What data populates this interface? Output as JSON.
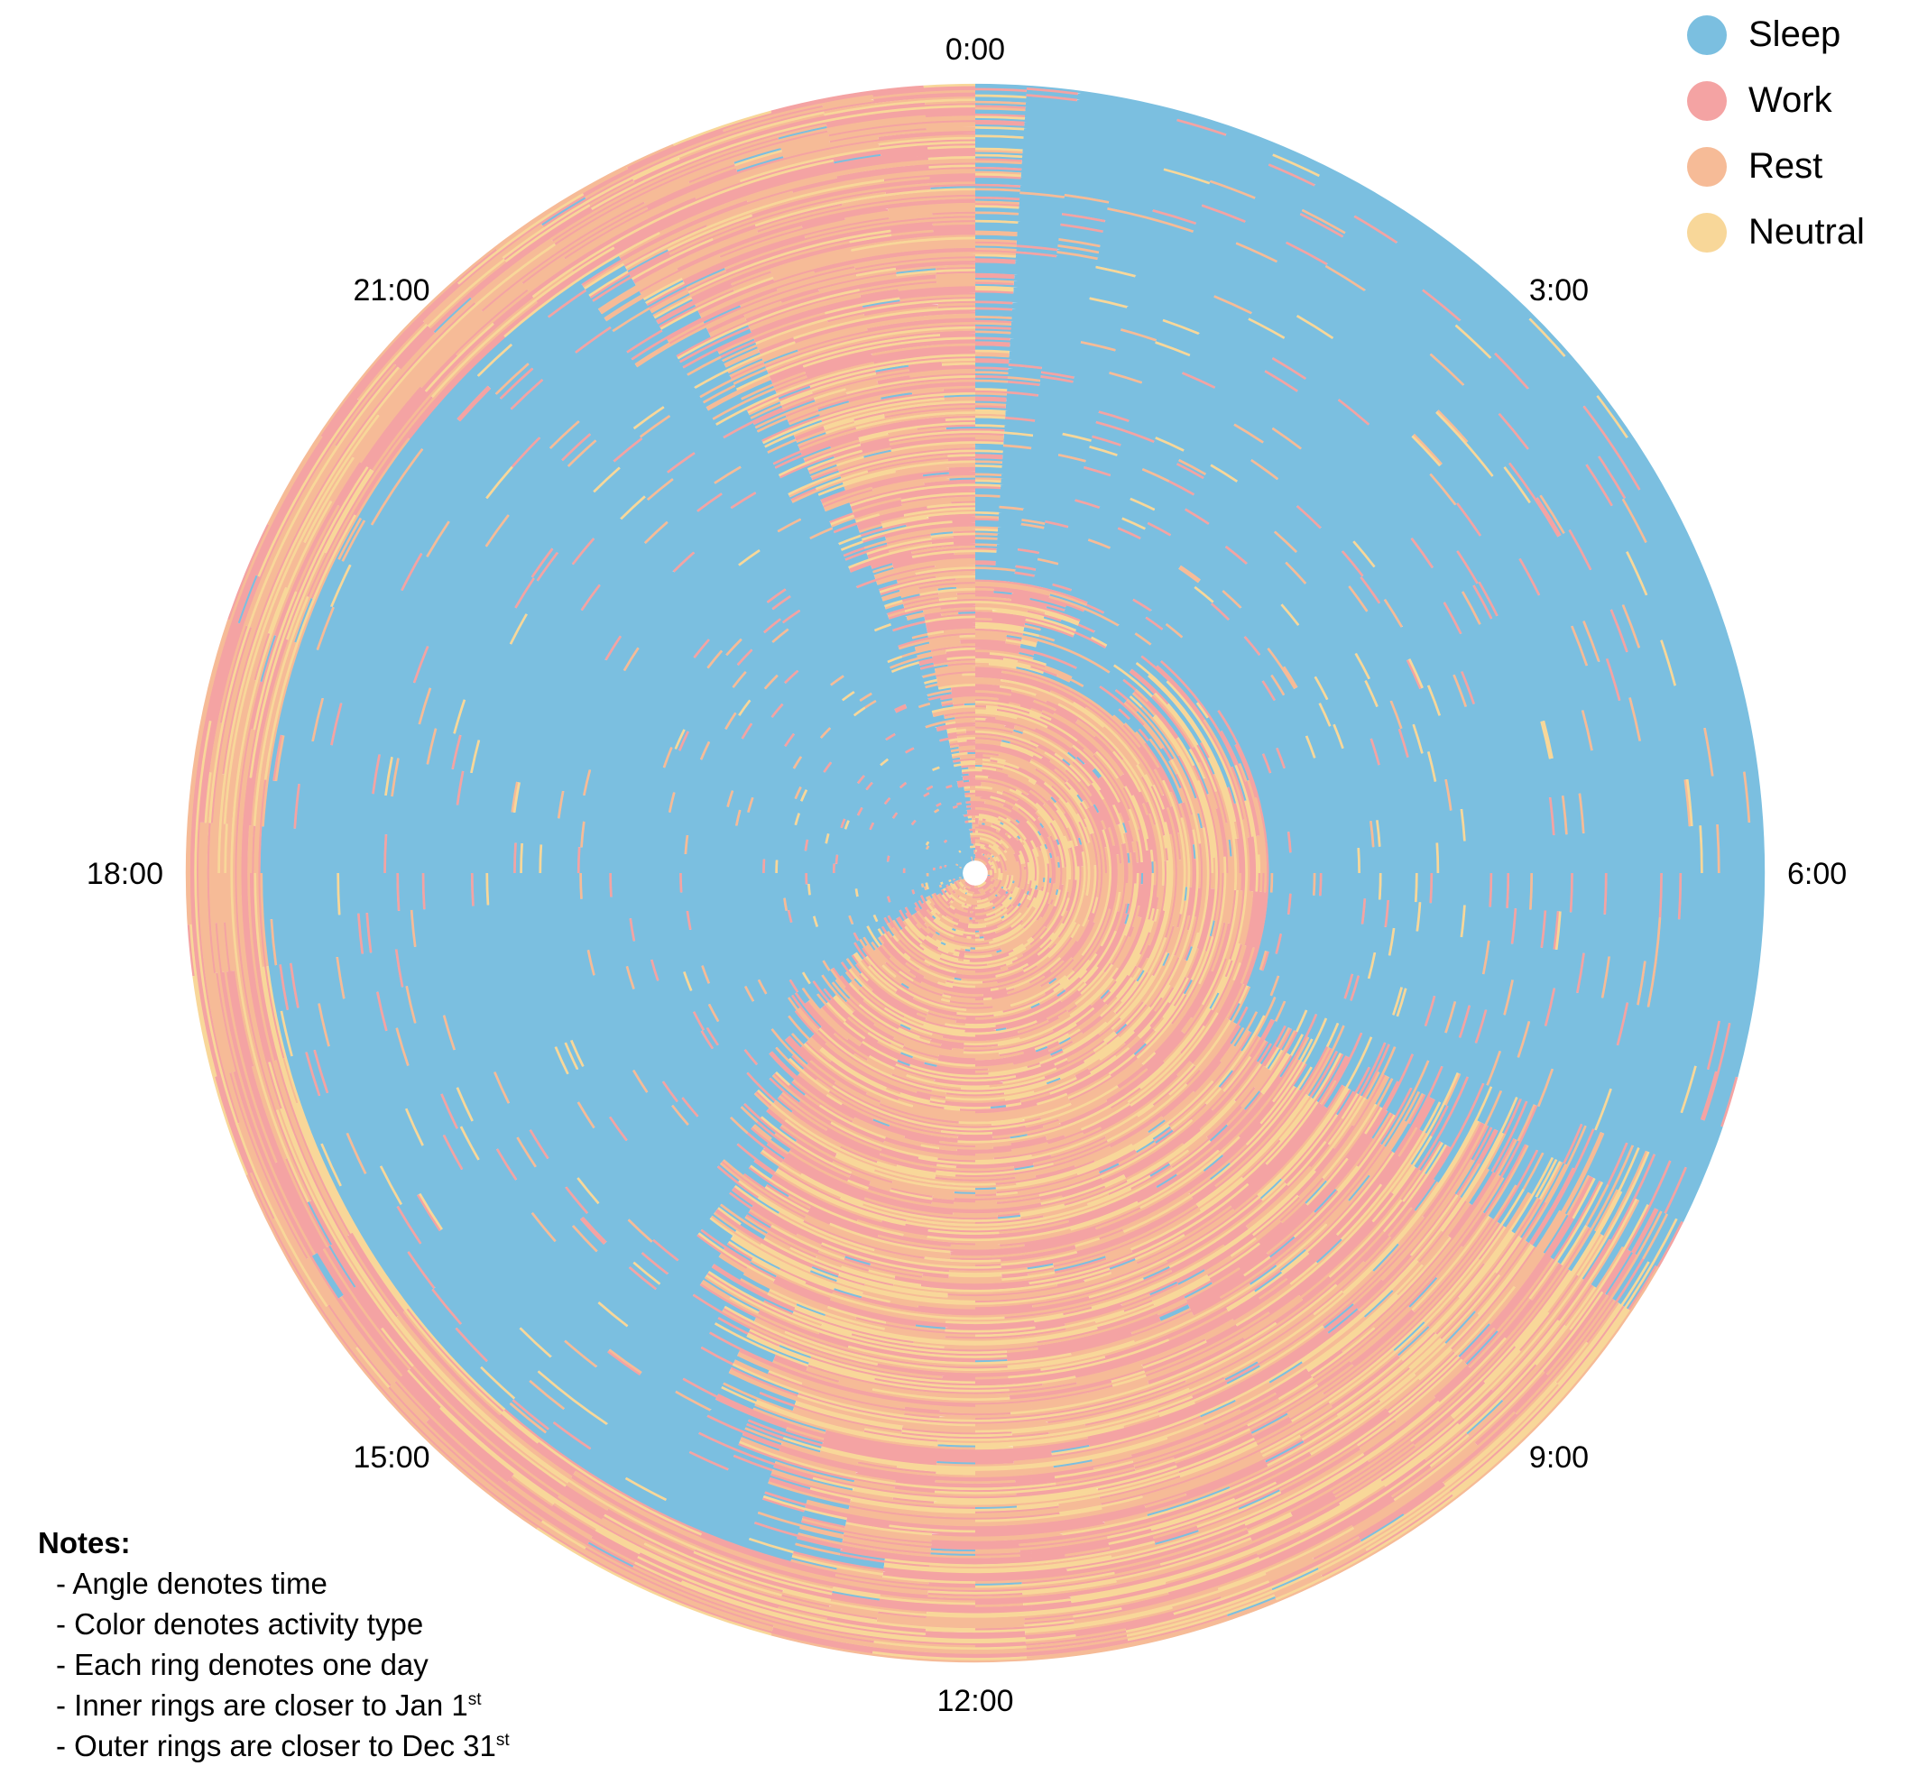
{
  "chart_data": {
    "type": "radial-activity",
    "categories": [
      "Sleep",
      "Work",
      "Rest",
      "Neutral"
    ],
    "colors": {
      "Sleep": "#7bbfe0",
      "Work": "#f4a3a3",
      "Rest": "#f6bb97",
      "Neutral": "#f8d799"
    },
    "hour_labels": [
      {
        "hour": 0,
        "text": "0:00"
      },
      {
        "hour": 3,
        "text": "3:00"
      },
      {
        "hour": 6,
        "text": "6:00"
      },
      {
        "hour": 9,
        "text": "9:00"
      },
      {
        "hour": 12,
        "text": "12:00"
      },
      {
        "hour": 15,
        "text": "15:00"
      },
      {
        "hour": 18,
        "text": "18:00"
      },
      {
        "hour": 21,
        "text": "21:00"
      }
    ],
    "day_count": 365,
    "sleep_windows_by_day_range": [
      {
        "days": "1-330 (approx.)",
        "sleep_start_hour": 16.2,
        "sleep_end_hour": 23.5,
        "shift_per_day_hours": 0.072
      },
      {
        "days": "131-365 (approx.)",
        "sleep_start_hour": 0.0,
        "sleep_end_hour": 7.8
      }
    ],
    "legend": [
      {
        "label": "Sleep",
        "color": "#7bbfe0"
      },
      {
        "label": "Work",
        "color": "#f4a3a3"
      },
      {
        "label": "Rest",
        "color": "#f6bb97"
      },
      {
        "label": "Neutral",
        "color": "#f8d799"
      }
    ],
    "legend_position": "top-right"
  },
  "notes": {
    "title": "Notes:",
    "lines": [
      {
        "text": "- Angle denotes time",
        "sup": ""
      },
      {
        "text": "- Color denotes activity type",
        "sup": ""
      },
      {
        "text": "- Each ring denotes one day",
        "sup": ""
      },
      {
        "text": "- Inner rings are closer to Jan 1",
        "sup": "st"
      },
      {
        "text": "- Outer rings are closer to Dec 31",
        "sup": "st"
      }
    ]
  }
}
